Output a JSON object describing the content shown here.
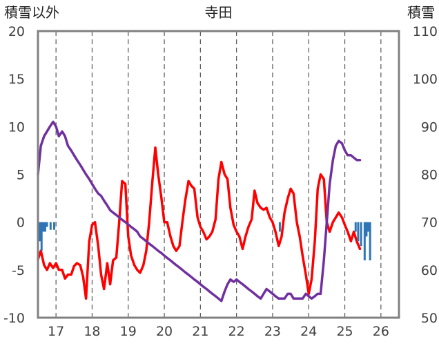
{
  "chart_data": {
    "type": "line",
    "title": "寺田",
    "left_axis_label": "積雪以外",
    "right_axis_label": "積雪",
    "left_ylim": [
      -10,
      20
    ],
    "left_yticks": [
      20,
      15,
      10,
      5,
      0,
      -5,
      -10
    ],
    "right_ylim": [
      50,
      110
    ],
    "right_yticks": [
      110,
      100,
      90,
      80,
      70,
      60,
      50
    ],
    "x_range": [
      16.5,
      26.5
    ],
    "x_ticks": [
      17,
      18,
      19,
      20,
      21,
      22,
      23,
      24,
      25,
      26
    ],
    "x_tick_labels": [
      "17",
      "18",
      "19",
      "20",
      "21",
      "22",
      "23",
      "24",
      "25",
      "26"
    ],
    "grid": {
      "vertical": "dashed",
      "horizontal": "none"
    },
    "colors": {
      "temperature": "#ff0000",
      "snow_depth": "#7030a0",
      "precipitation": "#2e75b6",
      "frame": "#808080"
    },
    "series": [
      {
        "axis": "left",
        "style": "line",
        "color": "#ff0000",
        "points": [
          [
            16.5,
            -3.9
          ],
          [
            16.58,
            -3.0
          ],
          [
            16.67,
            -4.5
          ],
          [
            16.75,
            -5.0
          ],
          [
            16.83,
            -4.3
          ],
          [
            16.92,
            -4.8
          ],
          [
            17.0,
            -4.3
          ],
          [
            17.08,
            -5.0
          ],
          [
            17.17,
            -5.0
          ],
          [
            17.25,
            -5.9
          ],
          [
            17.33,
            -5.5
          ],
          [
            17.42,
            -5.5
          ],
          [
            17.5,
            -4.6
          ],
          [
            17.58,
            -4.3
          ],
          [
            17.67,
            -4.5
          ],
          [
            17.75,
            -5.7
          ],
          [
            17.83,
            -8.0
          ],
          [
            17.92,
            -2.0
          ],
          [
            18.0,
            -0.3
          ],
          [
            18.08,
            0.0
          ],
          [
            18.17,
            -2.5
          ],
          [
            18.25,
            -5.5
          ],
          [
            18.33,
            -7.0
          ],
          [
            18.42,
            -4.3
          ],
          [
            18.5,
            -6.5
          ],
          [
            18.58,
            -4.0
          ],
          [
            18.67,
            -3.7
          ],
          [
            18.75,
            0.0
          ],
          [
            18.83,
            4.3
          ],
          [
            18.92,
            4.0
          ],
          [
            19.0,
            -1.5
          ],
          [
            19.08,
            -3.5
          ],
          [
            19.17,
            -4.5
          ],
          [
            19.25,
            -5.0
          ],
          [
            19.33,
            -5.3
          ],
          [
            19.42,
            -4.5
          ],
          [
            19.5,
            -3.0
          ],
          [
            19.58,
            0.0
          ],
          [
            19.67,
            4.3
          ],
          [
            19.75,
            7.8
          ],
          [
            19.83,
            5.0
          ],
          [
            19.92,
            2.5
          ],
          [
            20.0,
            0.0
          ],
          [
            20.08,
            0.0
          ],
          [
            20.17,
            -1.5
          ],
          [
            20.25,
            -2.5
          ],
          [
            20.33,
            -3.0
          ],
          [
            20.42,
            -2.5
          ],
          [
            20.5,
            0.0
          ],
          [
            20.58,
            2.3
          ],
          [
            20.67,
            4.3
          ],
          [
            20.75,
            3.8
          ],
          [
            20.83,
            3.5
          ],
          [
            20.92,
            0.5
          ],
          [
            21.0,
            -0.5
          ],
          [
            21.08,
            -1.0
          ],
          [
            21.17,
            -1.8
          ],
          [
            21.25,
            -1.5
          ],
          [
            21.33,
            -1.0
          ],
          [
            21.42,
            0.3
          ],
          [
            21.5,
            4.5
          ],
          [
            21.58,
            6.3
          ],
          [
            21.67,
            5.0
          ],
          [
            21.75,
            4.5
          ],
          [
            21.83,
            1.5
          ],
          [
            21.92,
            -0.3
          ],
          [
            22.0,
            -1.0
          ],
          [
            22.08,
            -1.5
          ],
          [
            22.17,
            -2.8
          ],
          [
            22.25,
            -1.5
          ],
          [
            22.33,
            -0.5
          ],
          [
            22.42,
            0.3
          ],
          [
            22.5,
            3.3
          ],
          [
            22.58,
            2.0
          ],
          [
            22.67,
            1.5
          ],
          [
            22.75,
            1.3
          ],
          [
            22.83,
            1.5
          ],
          [
            22.92,
            0.5
          ],
          [
            23.0,
            0.0
          ],
          [
            23.08,
            -1.0
          ],
          [
            23.17,
            -2.5
          ],
          [
            23.25,
            -1.5
          ],
          [
            23.33,
            1.0
          ],
          [
            23.42,
            2.5
          ],
          [
            23.5,
            3.5
          ],
          [
            23.58,
            3.0
          ],
          [
            23.67,
            0.0
          ],
          [
            23.75,
            -1.5
          ],
          [
            23.83,
            -3.5
          ],
          [
            23.92,
            -5.5
          ],
          [
            24.0,
            -7.5
          ],
          [
            24.08,
            -6.0
          ],
          [
            24.17,
            -2.0
          ],
          [
            24.25,
            3.5
          ],
          [
            24.33,
            5.0
          ],
          [
            24.42,
            4.5
          ],
          [
            24.5,
            0.0
          ],
          [
            24.58,
            -1.0
          ],
          [
            24.67,
            0.0
          ],
          [
            24.75,
            0.5
          ],
          [
            24.83,
            1.0
          ],
          [
            24.92,
            0.5
          ],
          [
            25.0,
            -0.3
          ],
          [
            25.08,
            -1.0
          ],
          [
            25.17,
            -2.0
          ],
          [
            25.25,
            -1.0
          ],
          [
            25.33,
            -2.0
          ],
          [
            25.42,
            -2.8
          ]
        ]
      },
      {
        "axis": "right",
        "style": "line",
        "color": "#7030a0",
        "points": [
          [
            16.5,
            80.0
          ],
          [
            16.58,
            86.0
          ],
          [
            16.67,
            88.0
          ],
          [
            16.75,
            89.0
          ],
          [
            16.83,
            90.0
          ],
          [
            16.92,
            91.0
          ],
          [
            17.0,
            90.0
          ],
          [
            17.08,
            88.0
          ],
          [
            17.17,
            89.0
          ],
          [
            17.25,
            88.0
          ],
          [
            17.33,
            86.0
          ],
          [
            17.42,
            85.0
          ],
          [
            17.5,
            84.0
          ],
          [
            17.58,
            83.0
          ],
          [
            17.67,
            82.0
          ],
          [
            17.75,
            81.0
          ],
          [
            17.83,
            80.0
          ],
          [
            17.92,
            79.0
          ],
          [
            18.0,
            78.0
          ],
          [
            18.08,
            77.0
          ],
          [
            18.17,
            76.0
          ],
          [
            18.25,
            75.5
          ],
          [
            18.33,
            74.5
          ],
          [
            18.42,
            73.5
          ],
          [
            18.5,
            72.5
          ],
          [
            18.58,
            72.0
          ],
          [
            18.67,
            71.5
          ],
          [
            18.75,
            71.0
          ],
          [
            18.83,
            70.5
          ],
          [
            18.92,
            70.0
          ],
          [
            19.0,
            69.5
          ],
          [
            19.08,
            69.0
          ],
          [
            19.17,
            68.5
          ],
          [
            19.25,
            68.0
          ],
          [
            19.33,
            67.0
          ],
          [
            19.42,
            66.5
          ],
          [
            19.5,
            66.0
          ],
          [
            19.58,
            65.5
          ],
          [
            19.67,
            65.0
          ],
          [
            19.75,
            64.5
          ],
          [
            19.83,
            64.0
          ],
          [
            19.92,
            63.5
          ],
          [
            20.0,
            63.0
          ],
          [
            20.08,
            62.5
          ],
          [
            20.17,
            62.0
          ],
          [
            20.25,
            61.5
          ],
          [
            20.33,
            61.0
          ],
          [
            20.42,
            60.5
          ],
          [
            20.5,
            60.0
          ],
          [
            20.58,
            59.5
          ],
          [
            20.67,
            59.0
          ],
          [
            20.75,
            58.5
          ],
          [
            20.83,
            58.0
          ],
          [
            20.92,
            57.5
          ],
          [
            21.0,
            57.0
          ],
          [
            21.08,
            56.5
          ],
          [
            21.17,
            56.0
          ],
          [
            21.25,
            55.5
          ],
          [
            21.33,
            55.0
          ],
          [
            21.42,
            54.5
          ],
          [
            21.5,
            54.0
          ],
          [
            21.58,
            53.5
          ],
          [
            21.67,
            55.5
          ],
          [
            21.75,
            57.0
          ],
          [
            21.83,
            58.0
          ],
          [
            21.92,
            57.5
          ],
          [
            22.0,
            58.0
          ],
          [
            22.08,
            57.5
          ],
          [
            22.17,
            57.0
          ],
          [
            22.25,
            56.5
          ],
          [
            22.33,
            56.0
          ],
          [
            22.42,
            55.5
          ],
          [
            22.5,
            55.0
          ],
          [
            22.58,
            54.5
          ],
          [
            22.67,
            54.0
          ],
          [
            22.75,
            55.0
          ],
          [
            22.83,
            56.0
          ],
          [
            22.92,
            55.5
          ],
          [
            23.0,
            55.0
          ],
          [
            23.08,
            54.5
          ],
          [
            23.17,
            54.0
          ],
          [
            23.25,
            54.0
          ],
          [
            23.33,
            54.0
          ],
          [
            23.42,
            55.0
          ],
          [
            23.5,
            55.0
          ],
          [
            23.58,
            54.0
          ],
          [
            23.67,
            54.0
          ],
          [
            23.75,
            54.0
          ],
          [
            23.83,
            54.0
          ],
          [
            23.92,
            55.0
          ],
          [
            24.0,
            54.5
          ],
          [
            24.08,
            54.0
          ],
          [
            24.17,
            54.5
          ],
          [
            24.25,
            55.0
          ],
          [
            24.33,
            55.0
          ],
          [
            24.42,
            62.0
          ],
          [
            24.5,
            70.0
          ],
          [
            24.58,
            78.0
          ],
          [
            24.67,
            83.0
          ],
          [
            24.75,
            86.0
          ],
          [
            24.83,
            87.0
          ],
          [
            24.92,
            86.5
          ],
          [
            25.0,
            85.0
          ],
          [
            25.08,
            84.0
          ],
          [
            25.17,
            84.0
          ],
          [
            25.25,
            83.5
          ],
          [
            25.33,
            83.0
          ],
          [
            25.42,
            83.0
          ]
        ]
      },
      {
        "axis": "left",
        "style": "bar",
        "color": "#2e75b6",
        "points": [
          [
            16.55,
            -2.0
          ],
          [
            16.6,
            -3.0
          ],
          [
            16.65,
            -1.0
          ],
          [
            16.7,
            -1.0
          ],
          [
            16.75,
            -0.5
          ],
          [
            16.85,
            -0.8
          ],
          [
            16.95,
            -0.8
          ],
          [
            23.2,
            -1.0
          ],
          [
            25.3,
            -1.0
          ],
          [
            25.37,
            -2.0
          ],
          [
            25.45,
            -2.5
          ],
          [
            25.55,
            -4.0
          ],
          [
            25.6,
            -1.5
          ],
          [
            25.65,
            -1.0
          ],
          [
            25.7,
            -4.0
          ]
        ]
      }
    ]
  }
}
